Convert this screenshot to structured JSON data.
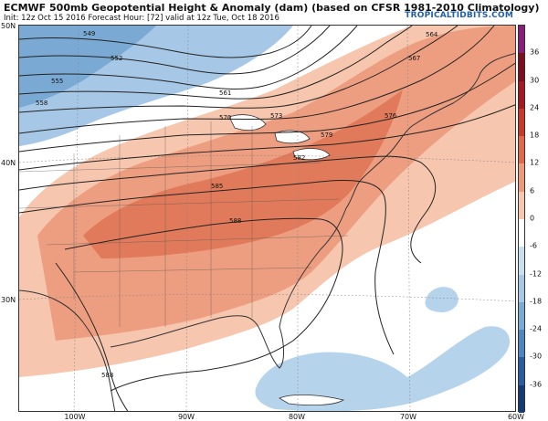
{
  "header": {
    "title": "ECMWF 500mb Geopotential Height & Anomaly (dam) (based on CFSR 1981-2010 Climatology)",
    "subtitle": "Init: 12z Oct 15 2016   Forecast Hour: [72]   valid at 12z Tue, Oct 18 2016",
    "credit": "TROPICALTIDBITS.COM"
  },
  "map": {
    "lat_labels": [
      "50N",
      "40N",
      "30N"
    ],
    "lon_labels": [
      "100W",
      "90W",
      "80W",
      "70W",
      "60W"
    ],
    "contour_labels": [
      "549",
      "552",
      "555",
      "558",
      "561",
      "564",
      "567",
      "570",
      "573",
      "576",
      "579",
      "582",
      "585",
      "588",
      "588"
    ]
  },
  "colorbar": {
    "ticks": [
      "36",
      "30",
      "24",
      "18",
      "12",
      "6",
      "0",
      "-6",
      "-12",
      "-18",
      "-24",
      "-30",
      "-36"
    ],
    "colors": [
      "#8a1f7a",
      "#7a1020",
      "#a01c22",
      "#c63a2c",
      "#dd6a4a",
      "#ec9a7a",
      "#f6c6ae",
      "#ffffff",
      "#c9dff0",
      "#a6c8e6",
      "#7aaad4",
      "#4f86bf",
      "#2b5d9e",
      "#163a75"
    ],
    "anomaly_positive": "#ec9a7a",
    "anomaly_negative": "#9cc4e2"
  }
}
